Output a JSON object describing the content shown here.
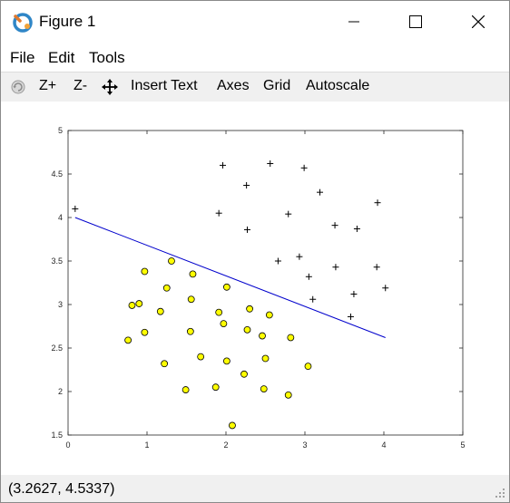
{
  "window": {
    "title": "Figure 1"
  },
  "menu": {
    "file": "File",
    "edit": "Edit",
    "tools": "Tools"
  },
  "toolbar": {
    "zoom_in": "Z+",
    "zoom_out": "Z-",
    "insert_text": "Insert Text",
    "axes": "Axes",
    "grid": "Grid",
    "autoscale": "Autoscale"
  },
  "status": {
    "coordinates": "(3.2627, 4.5337)"
  },
  "colors": {
    "boundary_line": "#0000cc",
    "circle_fill": "#ffff00",
    "circle_edge": "#000000",
    "cross": "#000000"
  },
  "icons": {
    "app": "octave-logo-icon",
    "rotate": "rotate-icon",
    "pan": "pan-move-icon"
  },
  "chart_data": {
    "type": "scatter",
    "title": "",
    "xlabel": "",
    "ylabel": "",
    "xlim": [
      0,
      5
    ],
    "ylim": [
      1.5,
      5
    ],
    "xticks": [
      "0",
      "1",
      "2",
      "3",
      "4",
      "5"
    ],
    "yticks": [
      "1.5",
      "2",
      "2.5",
      "3",
      "3.5",
      "4",
      "4.5",
      "5"
    ],
    "grid": false,
    "series": [
      {
        "marker": "cross",
        "points": [
          [
            0.09,
            4.1
          ],
          [
            1.96,
            4.6
          ],
          [
            2.56,
            4.62
          ],
          [
            2.99,
            4.57
          ],
          [
            2.26,
            4.37
          ],
          [
            3.19,
            4.29
          ],
          [
            3.92,
            4.17
          ],
          [
            1.91,
            4.05
          ],
          [
            2.79,
            4.04
          ],
          [
            3.38,
            3.91
          ],
          [
            3.66,
            3.87
          ],
          [
            2.27,
            3.86
          ],
          [
            2.93,
            3.55
          ],
          [
            2.66,
            3.5
          ],
          [
            3.39,
            3.43
          ],
          [
            3.91,
            3.43
          ],
          [
            3.05,
            3.32
          ],
          [
            4.02,
            3.19
          ],
          [
            3.62,
            3.12
          ],
          [
            3.1,
            3.06
          ],
          [
            3.58,
            2.86
          ]
        ]
      },
      {
        "marker": "circle",
        "points": [
          [
            0.97,
            3.38
          ],
          [
            1.31,
            3.5
          ],
          [
            1.58,
            3.35
          ],
          [
            1.25,
            3.19
          ],
          [
            2.01,
            3.2
          ],
          [
            1.56,
            3.06
          ],
          [
            0.81,
            2.99
          ],
          [
            0.9,
            3.01
          ],
          [
            1.17,
            2.92
          ],
          [
            2.3,
            2.95
          ],
          [
            1.91,
            2.91
          ],
          [
            2.55,
            2.88
          ],
          [
            1.97,
            2.78
          ],
          [
            0.97,
            2.68
          ],
          [
            1.55,
            2.69
          ],
          [
            2.27,
            2.71
          ],
          [
            2.46,
            2.64
          ],
          [
            2.82,
            2.62
          ],
          [
            0.76,
            2.59
          ],
          [
            1.68,
            2.4
          ],
          [
            2.01,
            2.35
          ],
          [
            2.5,
            2.38
          ],
          [
            1.22,
            2.32
          ],
          [
            3.04,
            2.29
          ],
          [
            2.23,
            2.2
          ],
          [
            1.49,
            2.02
          ],
          [
            1.87,
            2.05
          ],
          [
            2.48,
            2.03
          ],
          [
            2.79,
            1.96
          ],
          [
            2.08,
            1.61
          ]
        ]
      },
      {
        "marker": "line",
        "points": [
          [
            0.09,
            4.0
          ],
          [
            4.02,
            2.62
          ]
        ]
      }
    ]
  }
}
